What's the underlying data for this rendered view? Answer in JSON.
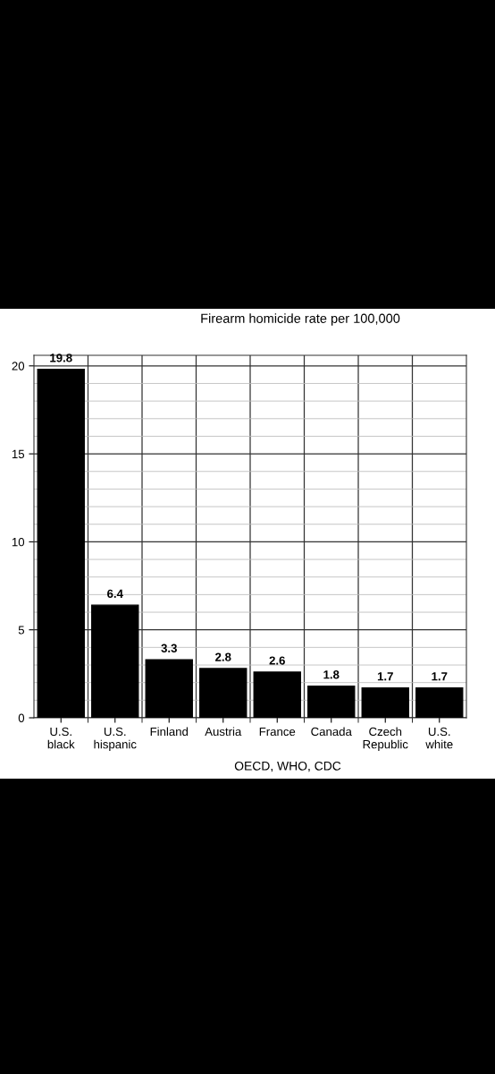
{
  "chart_data": {
    "type": "bar",
    "title": "Firearm homicide rate per 100,000",
    "categories": [
      "U.S.\nblack",
      "U.S.\nhispanic",
      "Finland",
      "Austria",
      "France",
      "Canada",
      "Czech\nRepublic",
      "U.S.\nwhite"
    ],
    "values": [
      19.8,
      6.4,
      3.3,
      2.8,
      2.6,
      1.8,
      1.7,
      1.7
    ],
    "color": "#000000",
    "ylim": [
      0,
      20.6
    ],
    "yticks": [
      0,
      5,
      10,
      15,
      20
    ],
    "grid": true,
    "data_labels": true,
    "annotations": [
      "OECD, WHO, CDC"
    ]
  }
}
